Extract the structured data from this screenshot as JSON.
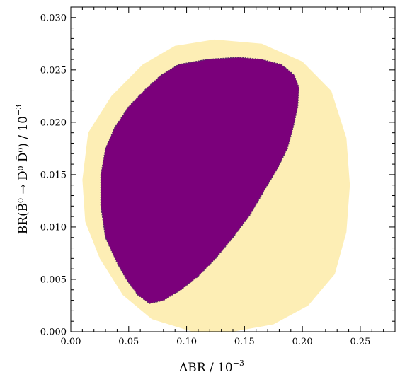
{
  "chart_data": {
    "type": "area",
    "xlabel": {
      "main": "ΔBR / 10",
      "sup": "−3"
    },
    "ylabel": {
      "main": "BR(B̄⁰ → D⁰ D̄⁰) / 10",
      "sup": "−3"
    },
    "xlim": [
      0.0,
      0.28
    ],
    "ylim": [
      0.0,
      0.031
    ],
    "x_ticks": [
      "0.00",
      "0.05",
      "0.10",
      "0.15",
      "0.20",
      "0.25"
    ],
    "y_ticks": [
      "0.000",
      "0.005",
      "0.010",
      "0.015",
      "0.020",
      "0.025",
      "0.030"
    ],
    "grid": false,
    "colors": {
      "outer": "#fdeeb5",
      "inner": "#7b007b",
      "inner_edge": "#5a2a6a"
    },
    "regions": [
      {
        "role": "outer",
        "points": [
          [
            0.124,
            0.0279
          ],
          [
            0.165,
            0.0275
          ],
          [
            0.2,
            0.0258
          ],
          [
            0.225,
            0.023
          ],
          [
            0.238,
            0.0185
          ],
          [
            0.241,
            0.014
          ],
          [
            0.238,
            0.0095
          ],
          [
            0.228,
            0.0055
          ],
          [
            0.205,
            0.0025
          ],
          [
            0.175,
            0.0007
          ],
          [
            0.14,
            0.0
          ],
          [
            0.105,
            0.0
          ],
          [
            0.07,
            0.0012
          ],
          [
            0.045,
            0.0035
          ],
          [
            0.025,
            0.007
          ],
          [
            0.0125,
            0.0105
          ],
          [
            0.01,
            0.0145
          ],
          [
            0.015,
            0.019
          ],
          [
            0.035,
            0.0225
          ],
          [
            0.062,
            0.0255
          ],
          [
            0.09,
            0.0273
          ]
        ]
      },
      {
        "role": "inner",
        "points": [
          [
            0.093,
            0.0255
          ],
          [
            0.118,
            0.026
          ],
          [
            0.145,
            0.0262
          ],
          [
            0.165,
            0.026
          ],
          [
            0.182,
            0.0255
          ],
          [
            0.193,
            0.0245
          ],
          [
            0.197,
            0.0233
          ],
          [
            0.196,
            0.0215
          ],
          [
            0.192,
            0.0195
          ],
          [
            0.187,
            0.0175
          ],
          [
            0.178,
            0.0155
          ],
          [
            0.167,
            0.0135
          ],
          [
            0.155,
            0.0112
          ],
          [
            0.14,
            0.009
          ],
          [
            0.125,
            0.007
          ],
          [
            0.11,
            0.0053
          ],
          [
            0.095,
            0.004
          ],
          [
            0.08,
            0.003
          ],
          [
            0.068,
            0.0027
          ],
          [
            0.058,
            0.0035
          ],
          [
            0.048,
            0.005
          ],
          [
            0.038,
            0.007
          ],
          [
            0.03,
            0.009
          ],
          [
            0.026,
            0.012
          ],
          [
            0.026,
            0.015
          ],
          [
            0.03,
            0.0175
          ],
          [
            0.038,
            0.0195
          ],
          [
            0.05,
            0.0215
          ],
          [
            0.065,
            0.0232
          ],
          [
            0.078,
            0.0245
          ]
        ]
      }
    ]
  }
}
